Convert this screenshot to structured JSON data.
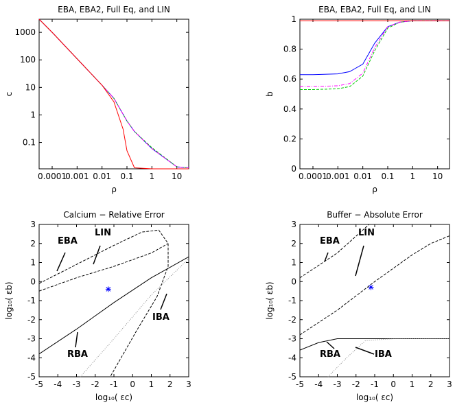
{
  "chart_data": [
    {
      "type": "line",
      "title": "EBA, EBA2, Full Eq, and LIN",
      "xlabel": "ρ",
      "ylabel": "c",
      "xscale": "log",
      "yscale": "log",
      "xlim": [
        3e-05,
        30
      ],
      "ylim": [
        0.011,
        3000
      ],
      "xticks": [
        0.0001,
        0.001,
        0.01,
        0.1,
        1,
        10
      ],
      "yticks": [
        0.1,
        1,
        10,
        100,
        1000
      ],
      "series": [
        {
          "color": "#0000ff",
          "dash": "solid",
          "x": [
            3e-05,
            0.0001,
            0.001,
            0.01,
            0.03,
            0.1,
            0.2,
            1,
            10,
            30
          ],
          "values": [
            3000,
            1000,
            110,
            12,
            4,
            0.6,
            0.25,
            0.06,
            0.013,
            0.012
          ]
        },
        {
          "color": "#00cc00",
          "dash": "dashed",
          "x": [
            3e-05,
            0.0001,
            0.001,
            0.01,
            0.03,
            0.1,
            0.2,
            1,
            10,
            30
          ],
          "values": [
            3000,
            1000,
            110,
            12,
            4,
            0.6,
            0.25,
            0.065,
            0.013,
            0.012
          ]
        },
        {
          "color": "#ff00ff",
          "dash": "dashdot",
          "x": [
            3e-05,
            0.0001,
            0.001,
            0.01,
            0.03,
            0.1,
            0.2,
            1,
            10,
            30
          ],
          "values": [
            3000,
            1000,
            110,
            12,
            4,
            0.6,
            0.25,
            0.06,
            0.013,
            0.012
          ]
        },
        {
          "color": "#ff0000",
          "dash": "solid",
          "x": [
            3e-05,
            0.0001,
            0.001,
            0.01,
            0.03,
            0.07,
            0.1,
            0.2,
            1,
            30
          ],
          "values": [
            3000,
            1000,
            110,
            12,
            3,
            0.3,
            0.05,
            0.012,
            0.011,
            0.011
          ]
        }
      ],
      "annotations": []
    },
    {
      "type": "line",
      "title": "EBA, EBA2, Full Eq, and LIN",
      "xlabel": "ρ",
      "ylabel": "b",
      "xscale": "log",
      "yscale": "linear",
      "xlim": [
        3e-05,
        30
      ],
      "ylim": [
        0,
        1
      ],
      "xticks": [
        0.0001,
        0.001,
        0.01,
        0.1,
        1,
        10
      ],
      "yticks": [
        0,
        0.2,
        0.4,
        0.6,
        0.8,
        1
      ],
      "series": [
        {
          "color": "#0000ff",
          "dash": "solid",
          "x": [
            3e-05,
            0.0001,
            0.001,
            0.003,
            0.01,
            0.03,
            0.1,
            0.3,
            1,
            30
          ],
          "values": [
            0.63,
            0.63,
            0.635,
            0.65,
            0.7,
            0.84,
            0.95,
            0.98,
            0.99,
            0.99
          ]
        },
        {
          "color": "#00cc00",
          "dash": "dashed",
          "x": [
            3e-05,
            0.0001,
            0.001,
            0.003,
            0.01,
            0.03,
            0.1,
            0.3,
            1,
            30
          ],
          "values": [
            0.53,
            0.53,
            0.535,
            0.55,
            0.62,
            0.79,
            0.94,
            0.98,
            0.99,
            0.99
          ]
        },
        {
          "color": "#ff00ff",
          "dash": "dashdot",
          "x": [
            3e-05,
            0.0001,
            0.001,
            0.003,
            0.01,
            0.03,
            0.1,
            0.3,
            1,
            30
          ],
          "values": [
            0.55,
            0.55,
            0.555,
            0.57,
            0.64,
            0.81,
            0.95,
            0.98,
            0.99,
            0.99
          ]
        },
        {
          "color": "#ff0000",
          "dash": "solid",
          "x": [
            3e-05,
            30
          ],
          "values": [
            0.99,
            0.99
          ]
        }
      ],
      "annotations": []
    },
    {
      "type": "line",
      "title": "Calcium − Relative Error",
      "xlabel": "log₁₀( εc)",
      "ylabel": "log₁₀( εb)",
      "xscale": "linear",
      "yscale": "linear",
      "xlim": [
        -5,
        3
      ],
      "ylim": [
        -5,
        3
      ],
      "xticks": [
        -5,
        -4,
        -3,
        -2,
        -1,
        0,
        1,
        2,
        3
      ],
      "yticks": [
        -5,
        -4,
        -3,
        -2,
        -1,
        0,
        1,
        2,
        3
      ],
      "series": [
        {
          "color": "#000000",
          "dash": "solid",
          "x": [
            -5,
            -3,
            -1,
            1,
            3
          ],
          "values": [
            -3.8,
            -2.5,
            -1.1,
            0.2,
            1.3
          ]
        },
        {
          "color": "#000000",
          "dash": "dashed",
          "x": [
            -5,
            -3,
            -1,
            0.5,
            1.4,
            1.9,
            1.9,
            1.3,
            0.2,
            -1.2
          ],
          "values": [
            -0.1,
            0.9,
            1.9,
            2.6,
            2.7,
            2.0,
            0.8,
            -0.8,
            -2.6,
            -5
          ]
        },
        {
          "color": "#000000",
          "dash": "dashed",
          "x": [
            -5,
            -3,
            -1,
            1,
            1.9
          ],
          "values": [
            -0.5,
            0.2,
            0.8,
            1.5,
            2.0
          ]
        },
        {
          "color": "#888888",
          "dash": "dotted",
          "x": [
            -2.8,
            -1,
            1,
            3
          ],
          "values": [
            -5,
            -3,
            -0.7,
            1.2
          ]
        },
        {
          "color": "#0000ff",
          "dash": "none",
          "marker": "*",
          "x": [
            -1.3
          ],
          "values": [
            -0.4
          ]
        }
      ],
      "annotations": [
        "EBA",
        "LIN",
        "RBA",
        "IBA"
      ]
    },
    {
      "type": "line",
      "title": "Buffer − Absolute Error",
      "xlabel": "log₁₀( εc)",
      "ylabel": "log₁₀( εb)",
      "xscale": "linear",
      "yscale": "linear",
      "xlim": [
        -5,
        3
      ],
      "ylim": [
        -5,
        3
      ],
      "xticks": [
        -5,
        -4,
        -3,
        -2,
        -1,
        0,
        1,
        2,
        3
      ],
      "yticks": [
        -5,
        -4,
        -3,
        -2,
        -1,
        0,
        1,
        2,
        3
      ],
      "series": [
        {
          "color": "#000000",
          "dash": "dashed",
          "x": [
            -5,
            -3,
            -1.3
          ],
          "values": [
            0.2,
            1.5,
            3
          ]
        },
        {
          "color": "#000000",
          "dash": "dashed",
          "x": [
            -5,
            -3,
            -1,
            1,
            2,
            3
          ],
          "values": [
            -2.8,
            -1.5,
            0,
            1.4,
            2,
            2.4
          ]
        },
        {
          "color": "#000000",
          "dash": "solid",
          "x": [
            -5,
            -4,
            -3,
            3
          ],
          "values": [
            -3.6,
            -3.2,
            -3,
            -3
          ]
        },
        {
          "color": "#888888",
          "dash": "dotted",
          "x": [
            -3.5,
            -2.5,
            -1.5,
            0,
            3
          ],
          "values": [
            -5,
            -4,
            -3.1,
            -3,
            -3
          ]
        },
        {
          "color": "#0000ff",
          "dash": "none",
          "marker": "*",
          "x": [
            -1.2
          ],
          "values": [
            -0.3
          ]
        }
      ],
      "annotations": [
        "EBA",
        "LIN",
        "RBA",
        "IBA"
      ]
    }
  ]
}
